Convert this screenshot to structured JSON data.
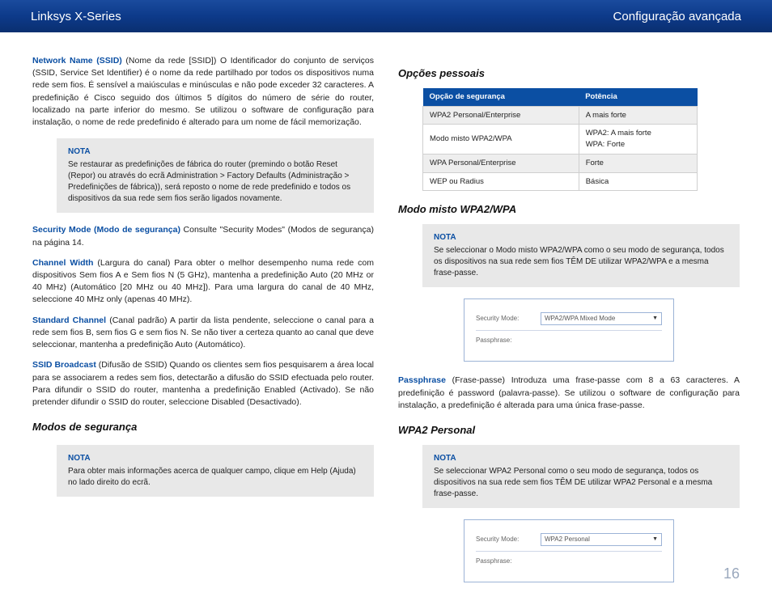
{
  "header": {
    "left": "Linksys X-Series",
    "right": "Configuração avançada"
  },
  "page_number": "16",
  "left_col": {
    "p1_term": "Network Name (SSID)",
    "p1_text": "  (Nome da rede [SSID]) O Identificador do conjunto de serviços (SSID, Service Set Identifier) é o nome da rede partilhado por todos os dispositivos numa rede sem fios. É sensível a maiúsculas e minúsculas e não pode exceder 32 caracteres. A predefinição é Cisco seguido dos últimos 5 dígitos do número de série do router, localizado na parte inferior do mesmo. Se utilizou o software de configuração para instalação, o nome de rede predefinido é alterado para um nome de fácil memorização.",
    "note1_title": "NOTA",
    "note1_body": "Se restaurar as predefinições de fábrica do router (premindo o botão Reset (Repor) ou através do ecrã Administration > Factory Defaults (Administração > Predefinições de fábrica)), será reposto o nome de rede predefinido e todos os dispositivos da sua rede sem fios serão ligados novamente.",
    "p2_term": "Security Mode (Modo de segurança)",
    "p2_text": "  Consulte \"Security Modes\" (Modos de segurança) na página 14.",
    "p3_term": "Channel Width",
    "p3_text": " (Largura do canal)  Para obter o melhor desempenho numa rede com dispositivos Sem fios A e Sem fios N (5 GHz), mantenha a predefinição Auto (20 MHz or 40 MHz) (Automático [20 MHz ou 40 MHz]). Para uma largura do canal de 40 MHz, seleccione 40 MHz only (apenas 40 MHz).",
    "p4_term": "Standard Channel",
    "p4_text": " (Canal padrão)   A partir da lista pendente, seleccione o canal para a rede sem fios B, sem fios G e sem fios N. Se não tiver a certeza quanto ao canal que deve seleccionar, mantenha a predefinição Auto (Automático).",
    "p5_term": "SSID Broadcast",
    "p5_text": " (Difusão de SSID)  Quando os clientes sem fios pesquisarem a área local para se associarem a redes sem fios, detectarão a difusão do SSID efectuada pelo router. Para difundir o SSID do router, mantenha a predefinição Enabled (Activado). Se não pretender difundir o SSID do router, seleccione Disabled (Desactivado).",
    "h_modos": "Modos de segurança",
    "note2_title": "NOTA",
    "note2_body": "Para obter mais informações acerca de qualquer campo, clique em Help (Ajuda) no lado direito do ecrã."
  },
  "right_col": {
    "h_opcoes": "Opções pessoais",
    "table": {
      "th1": "Opção de segurança",
      "th2": "Potência",
      "rows": [
        [
          "WPA2 Personal/Enterprise",
          "A mais forte"
        ],
        [
          "Modo misto WPA2/WPA",
          "WPA2: A mais forte\nWPA: Forte"
        ],
        [
          "WPA Personal/Enterprise",
          "Forte"
        ],
        [
          "WEP ou Radius",
          "Básica"
        ]
      ]
    },
    "h_modo_misto": "Modo misto WPA2/WPA",
    "note_mm_title": "NOTA",
    "note_mm_body": "Se seleccionar o Modo misto WPA2/WPA como o seu modo de segurança, todos os dispositivos na sua rede sem fios TÊM DE utilizar WPA2/WPA e a mesma frase-passe.",
    "form1": {
      "label1": "Security Mode:",
      "value1": "WPA2/WPA Mixed Mode",
      "label2": "Passphrase:"
    },
    "p_pass_term": "Passphrase",
    "p_pass_text": "  (Frase-passe) Introduza uma frase-passe com 8 a 63 caracteres. A predefinição é password (palavra-passe). Se utilizou o software de configuração para instalação, a predefinição é alterada para uma única frase-passe.",
    "h_wpa2": "WPA2 Personal",
    "note_wpa2_title": "NOTA",
    "note_wpa2_body": "Se seleccionar WPA2 Personal como o seu modo de segurança, todos os dispositivos na sua rede sem fios TÊM DE utilizar WPA2 Personal e a mesma frase-passe.",
    "form2": {
      "label1": "Security Mode:",
      "value1": "WPA2 Personal",
      "label2": "Passphrase:"
    }
  }
}
